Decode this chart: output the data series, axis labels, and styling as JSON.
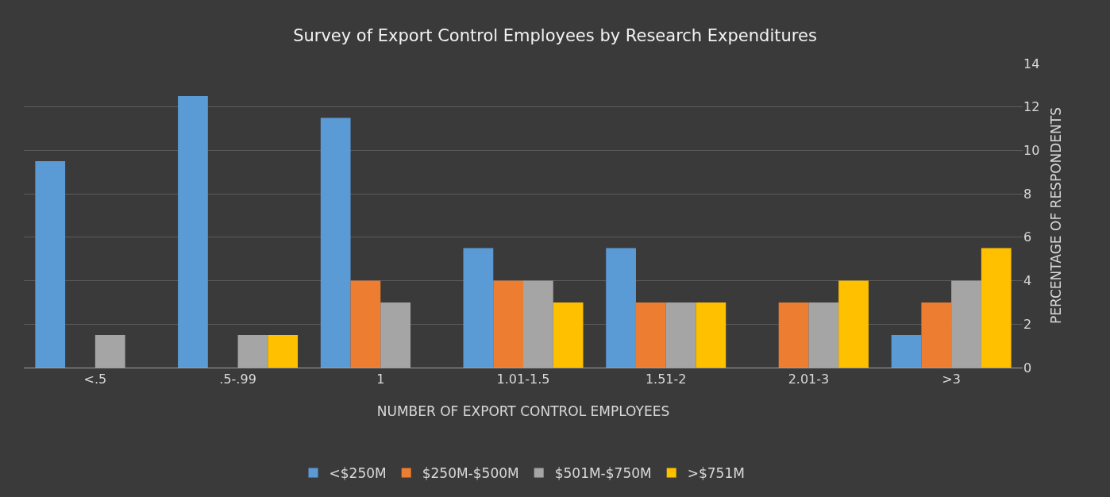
{
  "chart_data": {
    "type": "bar",
    "title": "Survey of Export Control Employees by Research Expenditures",
    "xlabel": "NUMBER OF EXPORT CONTROL EMPLOYEES",
    "ylabel": "PERCENTAGE OF RESPONDENTS",
    "categories": [
      "<.5",
      ".5-.99",
      "1",
      "1.01-1.5",
      "1.51-2",
      "2.01-3",
      ">3"
    ],
    "series": [
      {
        "name": "<$250M",
        "color": "#5b9bd5",
        "values": [
          9.5,
          12.5,
          11.5,
          5.5,
          5.5,
          0,
          1.5
        ]
      },
      {
        "name": "$250M-$500M",
        "color": "#ed7d31",
        "values": [
          0,
          0,
          4,
          4,
          3,
          3,
          3
        ]
      },
      {
        "name": "$501M-$750M",
        "color": "#a5a5a5",
        "values": [
          1.5,
          1.5,
          3,
          4,
          3,
          3,
          4
        ]
      },
      {
        "name": ">$751M",
        "color": "#ffc000",
        "values": [
          0,
          1.5,
          0,
          3,
          3,
          4,
          5.5
        ]
      }
    ],
    "ylim": [
      0,
      14
    ],
    "yticks": [
      0,
      2,
      4,
      6,
      8,
      10,
      12,
      14
    ],
    "grid": "y",
    "legend": "bottom"
  }
}
